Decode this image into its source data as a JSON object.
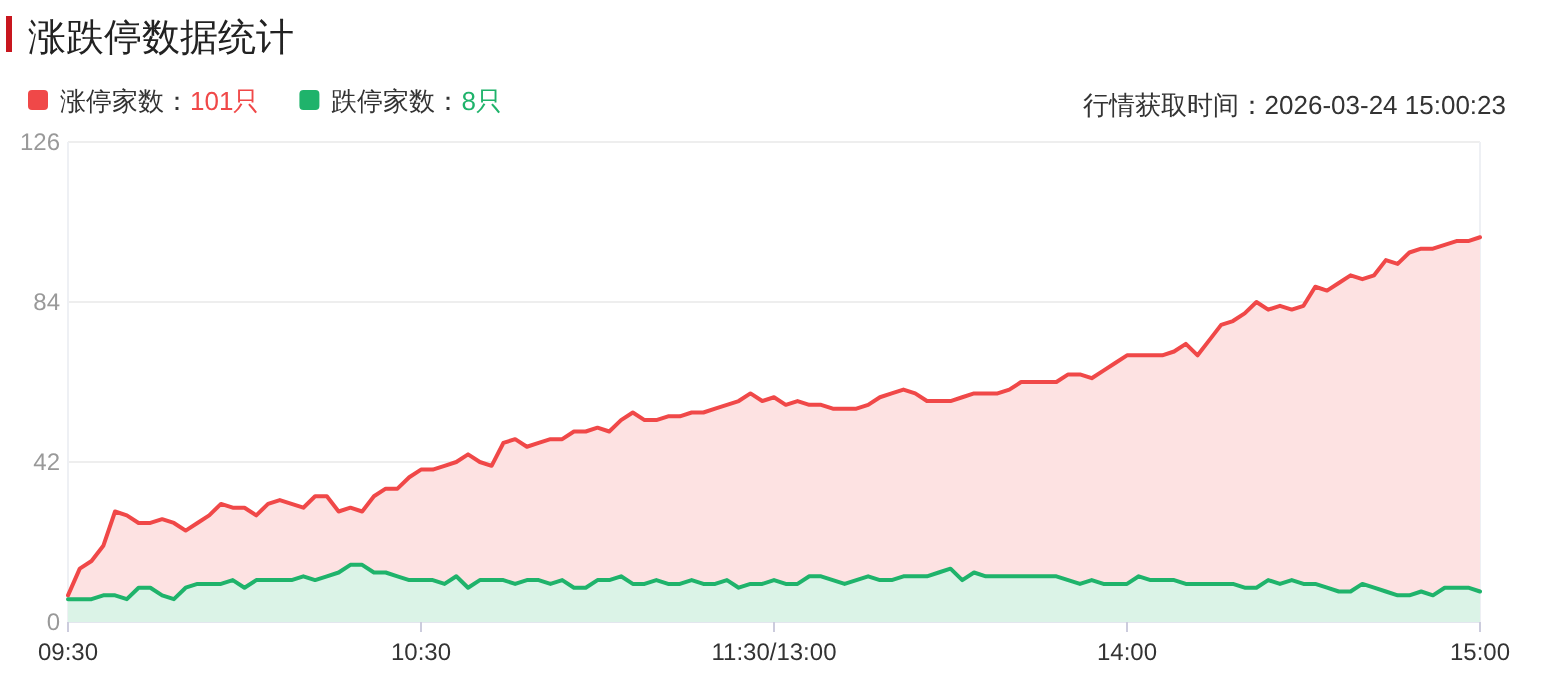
{
  "chart_data": {
    "type": "area",
    "title": "涨跌停数据统计",
    "annotations": [
      "行情获取时间：2026-03-24 15:00:23"
    ],
    "legend": "top left",
    "grid": "y",
    "line_style": "solid",
    "categories": [
      "09:30",
      null,
      null,
      null,
      null,
      null,
      null,
      null,
      null,
      null,
      null,
      null,
      null,
      null,
      null,
      null,
      null,
      null,
      null,
      null,
      null,
      null,
      null,
      null,
      null,
      null,
      null,
      null,
      null,
      null,
      "10:30",
      null,
      null,
      null,
      null,
      null,
      null,
      null,
      null,
      null,
      null,
      null,
      null,
      null,
      null,
      null,
      null,
      null,
      null,
      null,
      null,
      null,
      null,
      null,
      null,
      null,
      null,
      null,
      null,
      null,
      "11:30/13:00",
      null,
      null,
      null,
      null,
      null,
      null,
      null,
      null,
      null,
      null,
      null,
      null,
      null,
      null,
      null,
      null,
      null,
      null,
      null,
      null,
      null,
      null,
      null,
      null,
      null,
      null,
      null,
      null,
      null,
      "14:00",
      null,
      null,
      null,
      null,
      null,
      null,
      null,
      null,
      null,
      null,
      null,
      null,
      null,
      null,
      null,
      null,
      null,
      null,
      null,
      null,
      null,
      null,
      null,
      null,
      null,
      null,
      null,
      null,
      null,
      "15:00"
    ],
    "ylim": [
      0,
      126
    ],
    "yticks": [
      0,
      42,
      84,
      126
    ],
    "series": [
      {
        "name": "涨停家数：101只",
        "color": "#f04848",
        "values": [
          7,
          14,
          16,
          20,
          29,
          28,
          26,
          26,
          27,
          26,
          24,
          26,
          28,
          31,
          30,
          30,
          28,
          31,
          32,
          31,
          30,
          33,
          33,
          29,
          30,
          29,
          33,
          35,
          35,
          38,
          40,
          40,
          41,
          42,
          44,
          42,
          41,
          47,
          48,
          46,
          47,
          48,
          48,
          50,
          50,
          51,
          50,
          53,
          55,
          53,
          53,
          54,
          54,
          55,
          55,
          56,
          57,
          58,
          60,
          58,
          59,
          57,
          58,
          57,
          57,
          56,
          56,
          56,
          57,
          59,
          60,
          61,
          60,
          58,
          58,
          58,
          59,
          60,
          60,
          60,
          61,
          63,
          63,
          63,
          63,
          65,
          65,
          64,
          66,
          68,
          70,
          70,
          70,
          70,
          71,
          73,
          70,
          74,
          78,
          79,
          81,
          84,
          82,
          83,
          82,
          83,
          88,
          87,
          89,
          91,
          90,
          91,
          95,
          94,
          97,
          98,
          98,
          99,
          100,
          100,
          101
        ]
      },
      {
        "name": "跌停家数：8只",
        "color": "#1fb36b",
        "values": [
          6,
          6,
          6,
          7,
          7,
          6,
          9,
          9,
          7,
          6,
          9,
          10,
          10,
          10,
          11,
          9,
          11,
          11,
          11,
          11,
          12,
          11,
          12,
          13,
          15,
          15,
          13,
          13,
          12,
          11,
          11,
          11,
          10,
          12,
          9,
          11,
          11,
          11,
          10,
          11,
          11,
          10,
          11,
          9,
          9,
          11,
          11,
          12,
          10,
          10,
          11,
          10,
          10,
          11,
          10,
          10,
          11,
          9,
          10,
          10,
          11,
          10,
          10,
          12,
          12,
          11,
          10,
          11,
          12,
          11,
          11,
          12,
          12,
          12,
          13,
          14,
          11,
          13,
          12,
          12,
          12,
          12,
          12,
          12,
          12,
          11,
          10,
          11,
          10,
          10,
          10,
          12,
          11,
          11,
          11,
          10,
          10,
          10,
          10,
          10,
          9,
          9,
          11,
          10,
          11,
          10,
          10,
          9,
          8,
          8,
          10,
          9,
          8,
          7,
          7,
          8,
          7,
          9,
          9,
          9,
          8
        ]
      }
    ]
  }
}
